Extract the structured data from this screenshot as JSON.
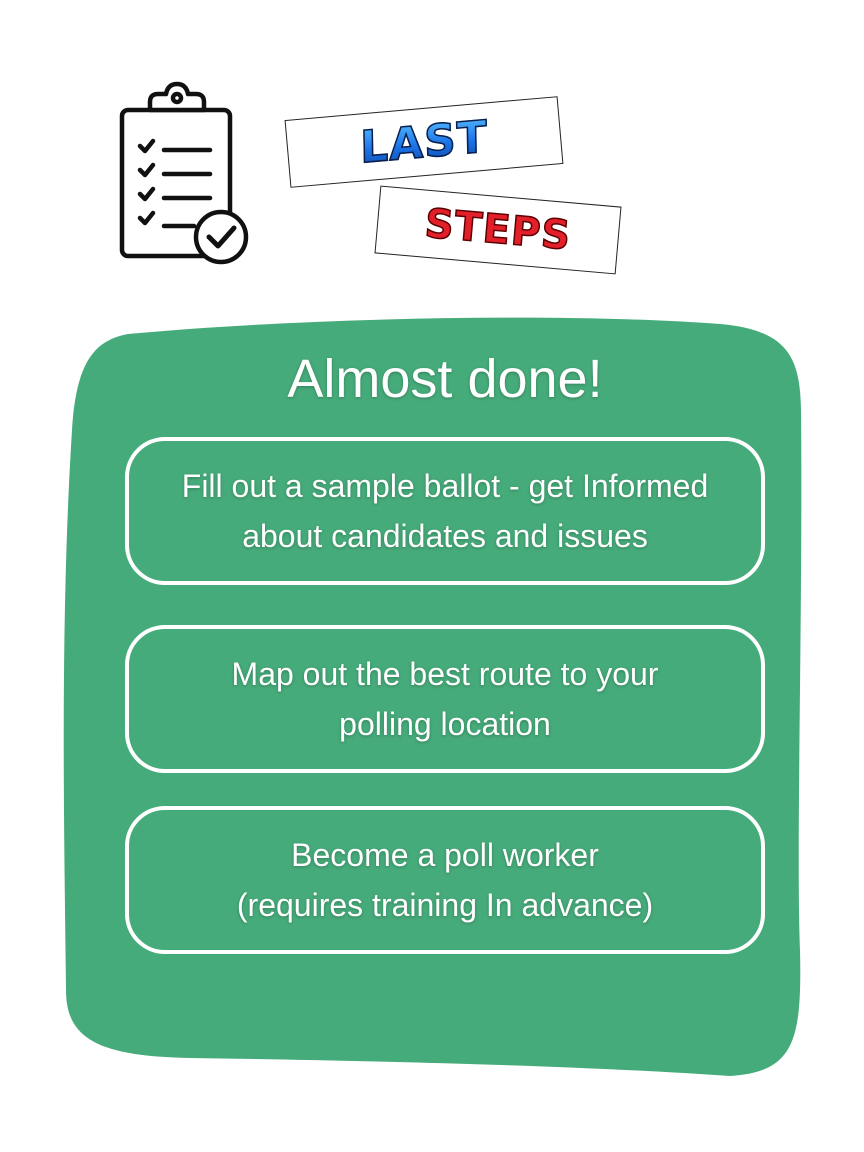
{
  "colors": {
    "panel": "#46ab7a",
    "last_text": "#1a73e8",
    "steps_text": "#e3202a",
    "card_border": "#ffffff"
  },
  "header": {
    "icon": "clipboard-checklist-icon",
    "tag_last": "LAST",
    "tag_steps": "STEPS"
  },
  "panel": {
    "heading": "Almost done!",
    "cards": [
      {
        "text": "Fill out a sample ballot - get Informed\nabout candidates and issues"
      },
      {
        "text": "Map out the best route to your\npolling location"
      },
      {
        "text": "Become a poll worker\n(requires training In advance)"
      }
    ]
  }
}
